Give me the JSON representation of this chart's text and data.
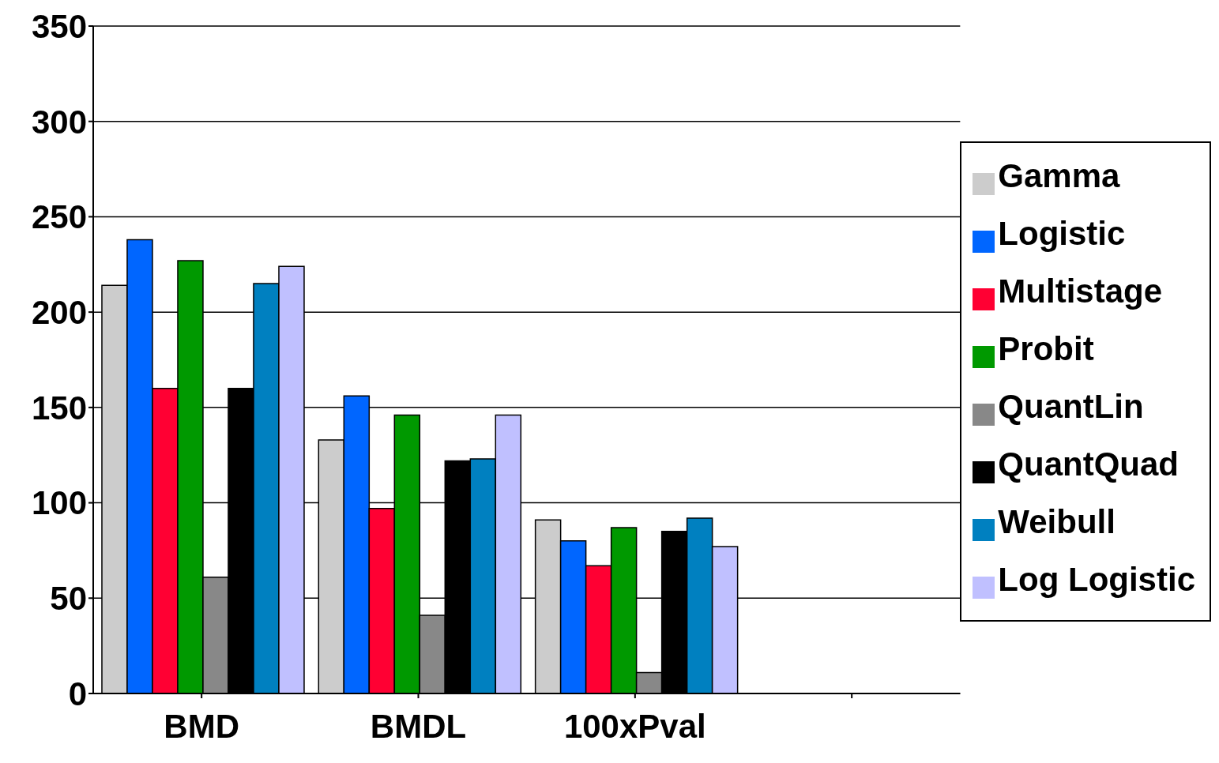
{
  "chart_data": {
    "type": "bar",
    "categories": [
      "BMD",
      "BMDL",
      "100xPval",
      null
    ],
    "series": [
      {
        "name": "Gamma",
        "color": "#cccccc",
        "values": [
          214,
          133,
          91,
          null
        ]
      },
      {
        "name": "Logistic",
        "color": "#0066ff",
        "values": [
          238,
          156,
          80,
          null
        ]
      },
      {
        "name": "Multistage",
        "color": "#ff0033",
        "values": [
          160,
          97,
          67,
          null
        ]
      },
      {
        "name": "Probit",
        "color": "#009900",
        "values": [
          227,
          146,
          87,
          null
        ]
      },
      {
        "name": "QuantLin",
        "color": "#888888",
        "values": [
          61,
          41,
          11,
          null
        ]
      },
      {
        "name": "QuantQuad",
        "color": "#000000",
        "values": [
          160,
          122,
          85,
          null
        ]
      },
      {
        "name": "Weibull",
        "color": "#0080c0",
        "values": [
          215,
          123,
          92,
          null
        ]
      },
      {
        "name": "Log Logistic",
        "color": "#c0c0ff",
        "values": [
          224,
          146,
          77,
          null
        ]
      }
    ],
    "ylim": [
      0,
      350
    ],
    "yticks": [
      0,
      50,
      100,
      150,
      200,
      250,
      300,
      350
    ],
    "grid": "y",
    "legend": "right"
  }
}
